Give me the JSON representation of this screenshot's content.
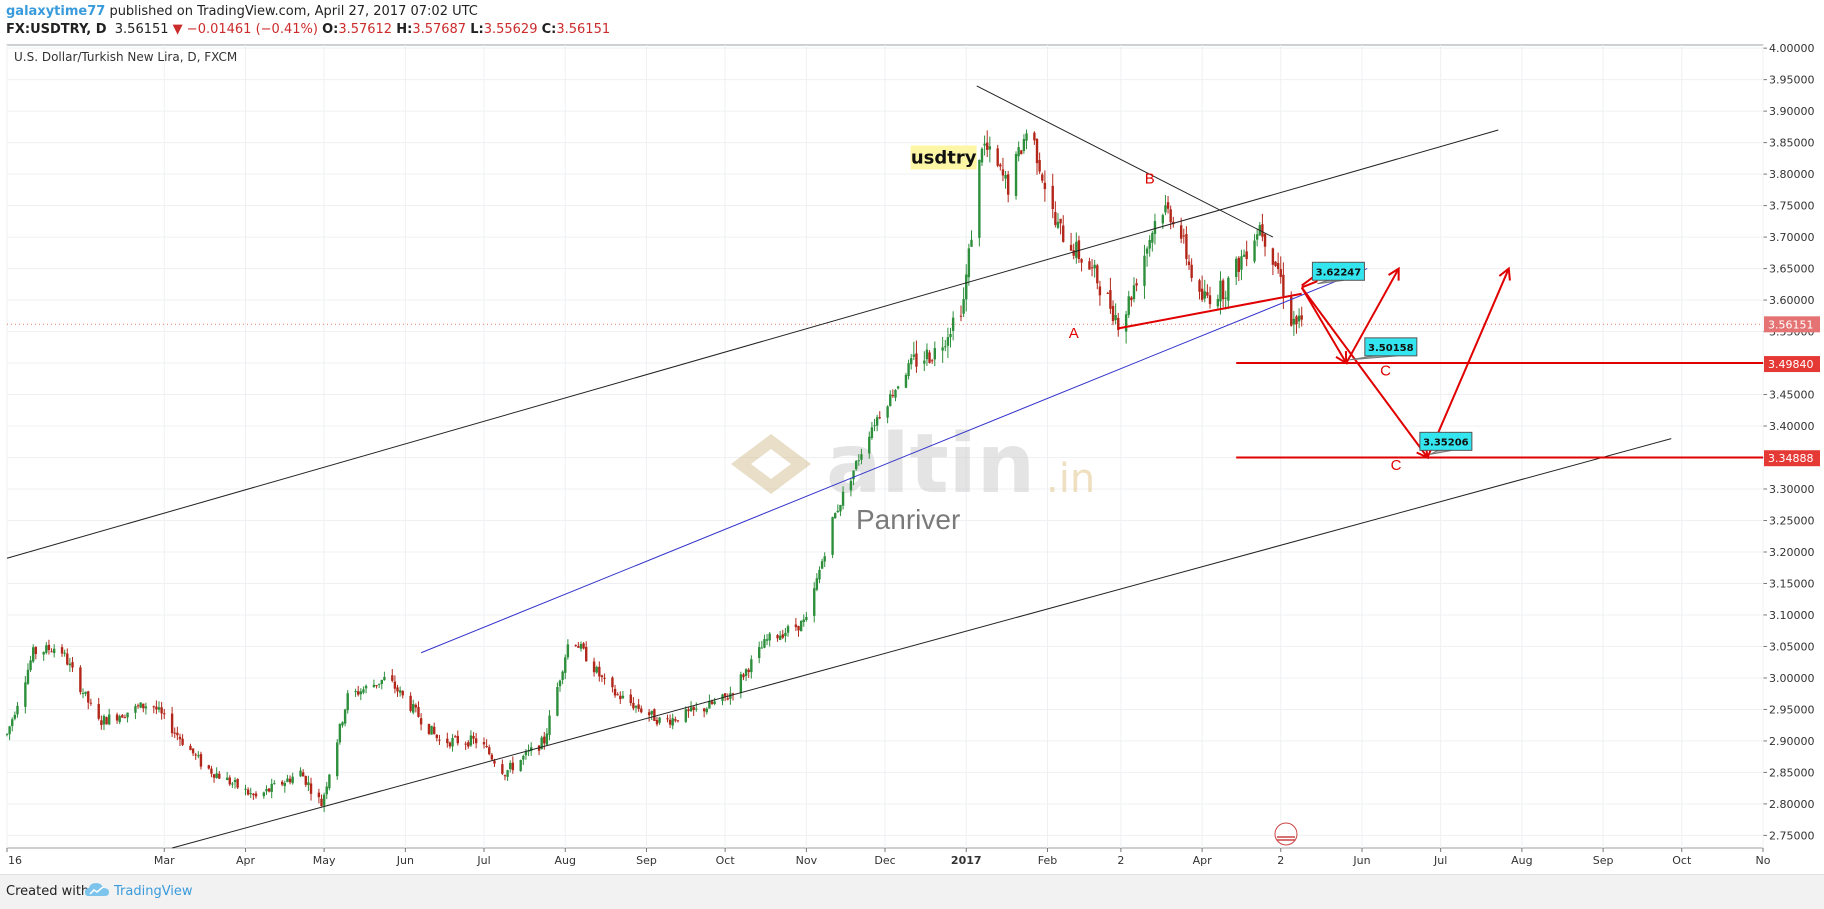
{
  "header": {
    "author": "galaxytime77",
    "published": "published on TradingView.com, April 27, 2017 07:02 UTC",
    "symbol": "FX:USDTRY, D",
    "last": "3.56151",
    "change": "▼ −0.01461 (−0.41%)",
    "o_label": "O:",
    "o_value": "3.57612",
    "h_label": "H:",
    "h_value": "3.57687",
    "l_label": "L:",
    "l_value": "3.55629",
    "c_label": "C:",
    "c_value": "3.56151"
  },
  "footer": {
    "created_with": "Created with",
    "brand": "TradingView"
  },
  "colors": {
    "up": "#2d8f3c",
    "down": "#b3271b",
    "red_annotation": "#e00000",
    "blue_line": "#3333cc",
    "label_bg": "#33e5ee",
    "price_tag_bg": "#e53935",
    "grid": "#eef0f3",
    "watermark": "#d8c49a"
  },
  "chart_data": {
    "type": "candlestick",
    "title": "U.S. Dollar/Turkish New Lira, D, FXCM",
    "ylim": [
      2.73,
      4.005
    ],
    "y_ticks": [
      "2.75000",
      "2.80000",
      "2.85000",
      "2.90000",
      "2.95000",
      "3.00000",
      "3.05000",
      "3.10000",
      "3.15000",
      "3.20000",
      "3.25000",
      "3.30000",
      "3.35000",
      "3.40000",
      "3.45000",
      "3.50000",
      "3.55000",
      "3.60000",
      "3.65000",
      "3.70000",
      "3.75000",
      "3.80000",
      "3.85000",
      "3.90000",
      "3.95000",
      "4.00000"
    ],
    "x_ticks": [
      "16",
      "Mar",
      "Apr",
      "May",
      "Jun",
      "Jul",
      "Aug",
      "Sep",
      "Oct",
      "Nov",
      "Dec",
      "2017",
      "Feb",
      "2",
      "Apr",
      "2",
      "Jun",
      "Jul",
      "Aug",
      "Sep",
      "Oct",
      "No"
    ],
    "x_tick_days": [
      0,
      60,
      91,
      121,
      152,
      182,
      213,
      244,
      274,
      305,
      335,
      366,
      397,
      425,
      456,
      486,
      517,
      547,
      578,
      609,
      639,
      670
    ],
    "x_range_days": [
      0,
      670
    ],
    "last_price": "3.56151",
    "price_tags": [
      "3.56151",
      "3.49840",
      "3.34888"
    ],
    "annotation_text": "usdtry",
    "watermark_brand": "altin",
    "watermark_suffix": ".in",
    "watermark_sub": "Panriver",
    "wave_labels": [
      "A",
      "B",
      "C",
      "C"
    ],
    "callouts": [
      "3.62247",
      "3.50158",
      "3.35206"
    ],
    "support_levels": [
      3.5,
      3.35
    ],
    "monthly_path": [
      {
        "day": 0,
        "price": 2.91
      },
      {
        "day": 10,
        "price": 3.04
      },
      {
        "day": 20,
        "price": 3.05
      },
      {
        "day": 35,
        "price": 2.93
      },
      {
        "day": 55,
        "price": 2.96
      },
      {
        "day": 75,
        "price": 2.86
      },
      {
        "day": 95,
        "price": 2.81
      },
      {
        "day": 112,
        "price": 2.85
      },
      {
        "day": 120,
        "price": 2.8
      },
      {
        "day": 130,
        "price": 2.97
      },
      {
        "day": 145,
        "price": 3.0
      },
      {
        "day": 165,
        "price": 2.9
      },
      {
        "day": 180,
        "price": 2.9
      },
      {
        "day": 190,
        "price": 2.85
      },
      {
        "day": 205,
        "price": 2.9
      },
      {
        "day": 215,
        "price": 3.07
      },
      {
        "day": 230,
        "price": 2.98
      },
      {
        "day": 250,
        "price": 2.93
      },
      {
        "day": 265,
        "price": 2.95
      },
      {
        "day": 275,
        "price": 2.97
      },
      {
        "day": 290,
        "price": 3.06
      },
      {
        "day": 305,
        "price": 3.09
      },
      {
        "day": 315,
        "price": 3.25
      },
      {
        "day": 330,
        "price": 3.4
      },
      {
        "day": 345,
        "price": 3.5
      },
      {
        "day": 355,
        "price": 3.52
      },
      {
        "day": 365,
        "price": 3.6
      },
      {
        "day": 372,
        "price": 3.85
      },
      {
        "day": 382,
        "price": 3.78
      },
      {
        "day": 390,
        "price": 3.88
      },
      {
        "day": 400,
        "price": 3.72
      },
      {
        "day": 415,
        "price": 3.64
      },
      {
        "day": 425,
        "price": 3.56
      },
      {
        "day": 440,
        "price": 3.75
      },
      {
        "day": 446,
        "price": 3.73
      },
      {
        "day": 455,
        "price": 3.6
      },
      {
        "day": 465,
        "price": 3.62
      },
      {
        "day": 478,
        "price": 3.72
      },
      {
        "day": 485,
        "price": 3.65
      },
      {
        "day": 490,
        "price": 3.57
      },
      {
        "day": 494,
        "price": 3.56
      }
    ]
  }
}
